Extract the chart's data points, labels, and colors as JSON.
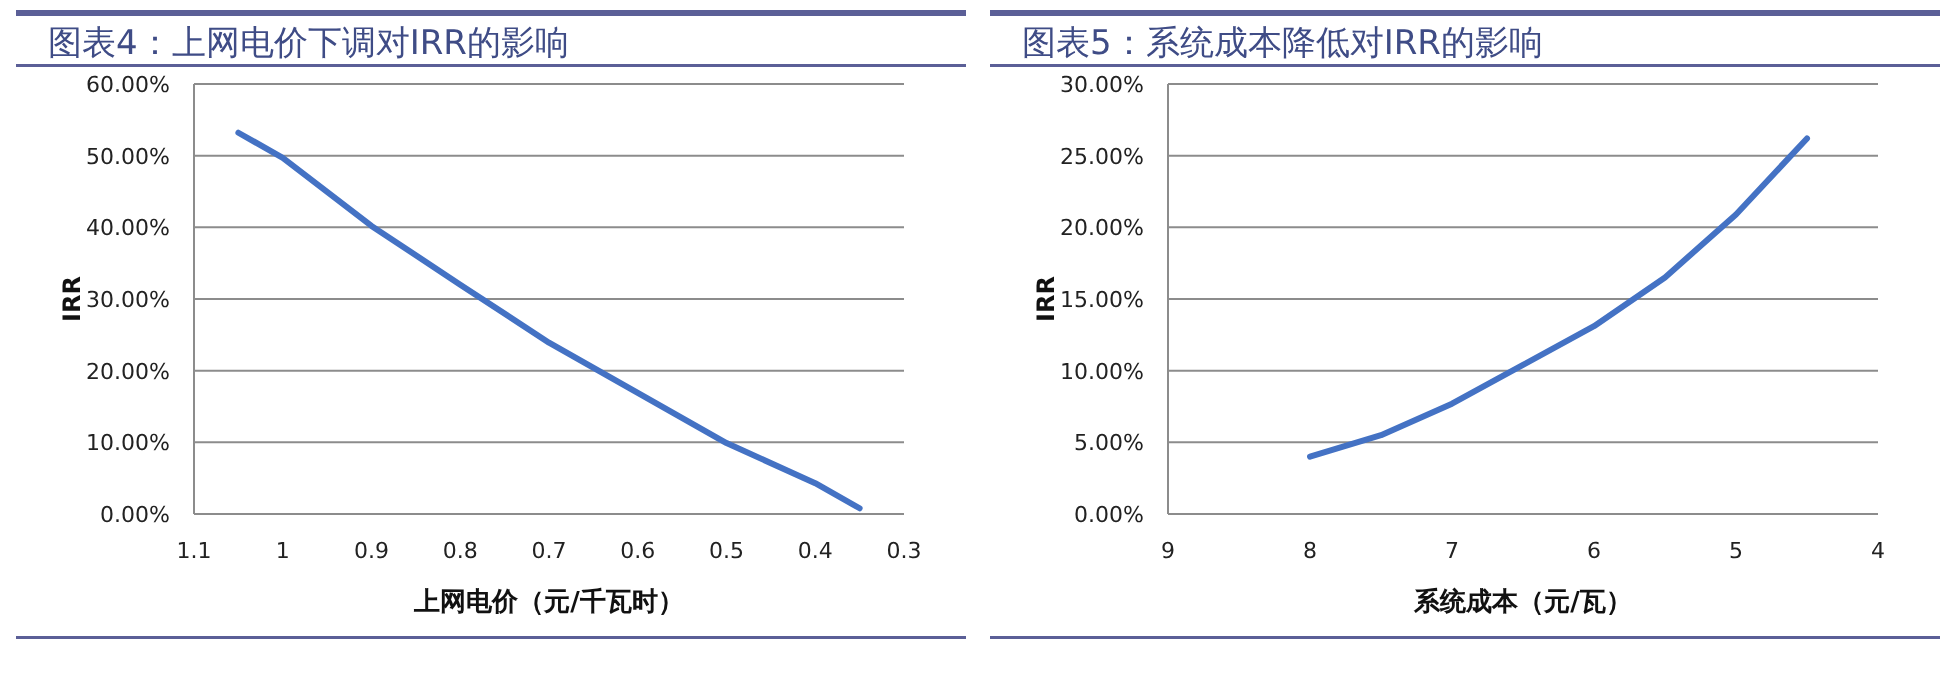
{
  "chart_data": [
    {
      "type": "line",
      "title": "图表4：上网电价下调对IRR的影响",
      "xlabel": "上网电价（元/千瓦时）",
      "ylabel": "IRR",
      "color": "#4472c4",
      "grid": "y",
      "x": [
        1.05,
        1.0,
        0.9,
        0.8,
        0.7,
        0.6,
        0.5,
        0.4,
        0.35
      ],
      "values": [
        53.2,
        49.7,
        40.2,
        32.0,
        23.9,
        16.9,
        9.9,
        4.3,
        0.8
      ],
      "xlim": [
        1.1,
        0.3
      ],
      "xticks": [
        1.1,
        1,
        0.9,
        0.8,
        0.7,
        0.6,
        0.5,
        0.4,
        0.3
      ],
      "ylim": [
        0,
        60
      ],
      "yticks": [
        {
          "value": 0,
          "label": "0.00%"
        },
        {
          "value": 10,
          "label": "10.00%"
        },
        {
          "value": 20,
          "label": "20.00%"
        },
        {
          "value": 30,
          "label": "30.00%"
        },
        {
          "value": 40,
          "label": "40.00%"
        },
        {
          "value": 50,
          "label": "50.00%"
        },
        {
          "value": 60,
          "label": "60.00%"
        }
      ]
    },
    {
      "type": "line",
      "title": "图表5：系统成本降低对IRR的影响",
      "xlabel": "系统成本（元/瓦）",
      "ylabel": "IRR",
      "color": "#4472c4",
      "grid": "y",
      "x": [
        8,
        7.5,
        7,
        6.5,
        6,
        5.5,
        5,
        4.5
      ],
      "values": [
        4.0,
        5.5,
        7.7,
        10.4,
        13.1,
        16.5,
        20.9,
        26.2
      ],
      "xlim": [
        9,
        4
      ],
      "xticks": [
        9,
        8,
        7,
        6,
        5,
        4
      ],
      "ylim": [
        0,
        30
      ],
      "yticks": [
        {
          "value": 0,
          "label": "0.00%"
        },
        {
          "value": 5,
          "label": "5.00%"
        },
        {
          "value": 10,
          "label": "10.00%"
        },
        {
          "value": 15,
          "label": "15.00%"
        },
        {
          "value": 20,
          "label": "20.00%"
        },
        {
          "value": 25,
          "label": "25.00%"
        },
        {
          "value": 30,
          "label": "30.00%"
        }
      ]
    }
  ]
}
